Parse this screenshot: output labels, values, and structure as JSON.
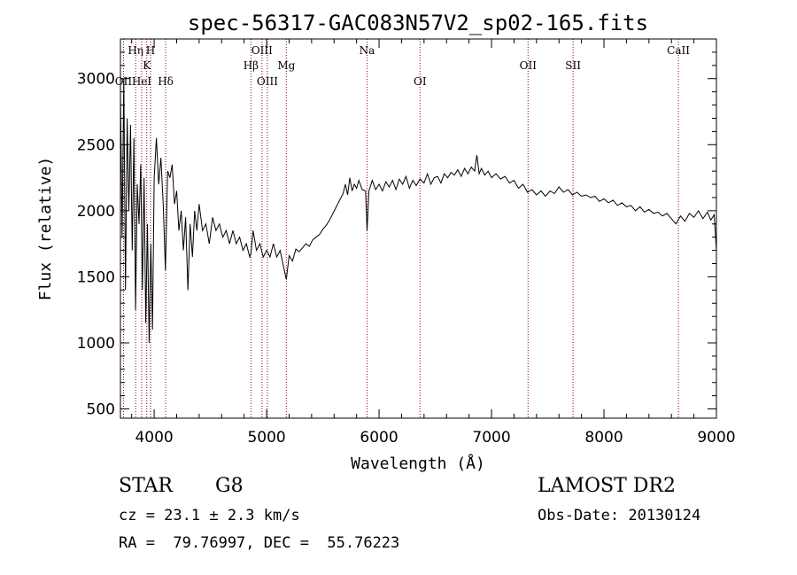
{
  "chart_data": {
    "type": "line",
    "title": "spec-56317-GAC083N57V2_sp02-165.fits",
    "xlabel": "Wavelength (Å)",
    "ylabel": "Flux (relative)",
    "xlim": [
      3700,
      9000
    ],
    "ylim": [
      430,
      3300
    ],
    "xticks": [
      4000,
      5000,
      6000,
      7000,
      8000,
      9000
    ],
    "yticks": [
      500,
      1000,
      1500,
      2000,
      2500,
      3000
    ],
    "line_color": "#000000",
    "marker_color": "#8b0000",
    "lines": [
      {
        "label": "OII",
        "x": 3727,
        "row": 2
      },
      {
        "label": "Hη",
        "x": 3835,
        "row": 0
      },
      {
        "label": "HeI",
        "x": 3889,
        "row": 2
      },
      {
        "label": "K",
        "x": 3934,
        "row": 1
      },
      {
        "label": "H",
        "x": 3968,
        "row": 0
      },
      {
        "label": "Hδ",
        "x": 4102,
        "row": 2
      },
      {
        "label": "Hβ",
        "x": 4861,
        "row": 1
      },
      {
        "label": "OIII",
        "x": 4959,
        "row": 0
      },
      {
        "label": "OIII",
        "x": 5007,
        "row": 2
      },
      {
        "label": "Mg",
        "x": 5175,
        "row": 1
      },
      {
        "label": "Na",
        "x": 5893,
        "row": 0
      },
      {
        "label": "OI",
        "x": 6364,
        "row": 2
      },
      {
        "label": "OII",
        "x": 7325,
        "row": 1
      },
      {
        "label": "SII",
        "x": 7725,
        "row": 1
      },
      {
        "label": "CaII",
        "x": 8662,
        "row": 0
      }
    ],
    "spectrum": [
      [
        3700,
        2900
      ],
      [
        3715,
        1800
      ],
      [
        3730,
        3000
      ],
      [
        3745,
        1400
      ],
      [
        3760,
        2700
      ],
      [
        3775,
        2000
      ],
      [
        3790,
        2650
      ],
      [
        3805,
        1700
      ],
      [
        3820,
        2550
      ],
      [
        3835,
        1250
      ],
      [
        3850,
        2200
      ],
      [
        3865,
        1900
      ],
      [
        3880,
        2350
      ],
      [
        3895,
        1400
      ],
      [
        3910,
        2250
      ],
      [
        3925,
        1150
      ],
      [
        3940,
        1900
      ],
      [
        3955,
        1000
      ],
      [
        3970,
        1750
      ],
      [
        3985,
        1100
      ],
      [
        4000,
        2250
      ],
      [
        4020,
        2550
      ],
      [
        4040,
        2200
      ],
      [
        4060,
        2400
      ],
      [
        4080,
        2050
      ],
      [
        4100,
        1550
      ],
      [
        4120,
        2300
      ],
      [
        4140,
        2250
      ],
      [
        4160,
        2350
      ],
      [
        4180,
        2050
      ],
      [
        4200,
        2150
      ],
      [
        4220,
        1850
      ],
      [
        4240,
        2000
      ],
      [
        4260,
        1700
      ],
      [
        4280,
        1950
      ],
      [
        4300,
        1400
      ],
      [
        4320,
        1900
      ],
      [
        4340,
        1650
      ],
      [
        4360,
        2000
      ],
      [
        4380,
        1850
      ],
      [
        4400,
        2050
      ],
      [
        4430,
        1850
      ],
      [
        4460,
        1900
      ],
      [
        4490,
        1750
      ],
      [
        4520,
        1950
      ],
      [
        4550,
        1850
      ],
      [
        4580,
        1900
      ],
      [
        4610,
        1800
      ],
      [
        4640,
        1850
      ],
      [
        4670,
        1750
      ],
      [
        4700,
        1850
      ],
      [
        4730,
        1750
      ],
      [
        4760,
        1800
      ],
      [
        4790,
        1700
      ],
      [
        4820,
        1750
      ],
      [
        4850,
        1650
      ],
      [
        4861,
        1680
      ],
      [
        4880,
        1850
      ],
      [
        4910,
        1700
      ],
      [
        4940,
        1750
      ],
      [
        4970,
        1650
      ],
      [
        5000,
        1700
      ],
      [
        5030,
        1650
      ],
      [
        5060,
        1750
      ],
      [
        5090,
        1650
      ],
      [
        5120,
        1700
      ],
      [
        5150,
        1580
      ],
      [
        5175,
        1480
      ],
      [
        5200,
        1660
      ],
      [
        5230,
        1620
      ],
      [
        5260,
        1710
      ],
      [
        5290,
        1690
      ],
      [
        5320,
        1720
      ],
      [
        5350,
        1750
      ],
      [
        5380,
        1730
      ],
      [
        5410,
        1780
      ],
      [
        5440,
        1800
      ],
      [
        5470,
        1820
      ],
      [
        5500,
        1860
      ],
      [
        5530,
        1890
      ],
      [
        5560,
        1930
      ],
      [
        5590,
        1980
      ],
      [
        5620,
        2030
      ],
      [
        5650,
        2080
      ],
      [
        5680,
        2130
      ],
      [
        5700,
        2200
      ],
      [
        5720,
        2120
      ],
      [
        5740,
        2250
      ],
      [
        5760,
        2150
      ],
      [
        5780,
        2200
      ],
      [
        5800,
        2170
      ],
      [
        5820,
        2230
      ],
      [
        5850,
        2160
      ],
      [
        5880,
        2150
      ],
      [
        5893,
        1850
      ],
      [
        5910,
        2150
      ],
      [
        5940,
        2230
      ],
      [
        5970,
        2160
      ],
      [
        6000,
        2200
      ],
      [
        6030,
        2150
      ],
      [
        6060,
        2220
      ],
      [
        6090,
        2180
      ],
      [
        6120,
        2230
      ],
      [
        6150,
        2160
      ],
      [
        6180,
        2240
      ],
      [
        6210,
        2200
      ],
      [
        6240,
        2260
      ],
      [
        6270,
        2170
      ],
      [
        6300,
        2230
      ],
      [
        6330,
        2190
      ],
      [
        6364,
        2240
      ],
      [
        6400,
        2210
      ],
      [
        6430,
        2280
      ],
      [
        6460,
        2200
      ],
      [
        6490,
        2250
      ],
      [
        6520,
        2260
      ],
      [
        6550,
        2210
      ],
      [
        6580,
        2280
      ],
      [
        6610,
        2250
      ],
      [
        6640,
        2290
      ],
      [
        6670,
        2270
      ],
      [
        6700,
        2310
      ],
      [
        6730,
        2260
      ],
      [
        6760,
        2320
      ],
      [
        6790,
        2280
      ],
      [
        6820,
        2330
      ],
      [
        6850,
        2300
      ],
      [
        6870,
        2420
      ],
      [
        6890,
        2280
      ],
      [
        6910,
        2320
      ],
      [
        6940,
        2270
      ],
      [
        6970,
        2300
      ],
      [
        7000,
        2250
      ],
      [
        7040,
        2280
      ],
      [
        7080,
        2240
      ],
      [
        7120,
        2260
      ],
      [
        7160,
        2210
      ],
      [
        7200,
        2230
      ],
      [
        7240,
        2170
      ],
      [
        7280,
        2200
      ],
      [
        7320,
        2140
      ],
      [
        7360,
        2160
      ],
      [
        7400,
        2120
      ],
      [
        7440,
        2150
      ],
      [
        7480,
        2110
      ],
      [
        7520,
        2150
      ],
      [
        7560,
        2130
      ],
      [
        7600,
        2180
      ],
      [
        7640,
        2140
      ],
      [
        7680,
        2160
      ],
      [
        7720,
        2120
      ],
      [
        7760,
        2140
      ],
      [
        7800,
        2110
      ],
      [
        7840,
        2120
      ],
      [
        7880,
        2100
      ],
      [
        7920,
        2110
      ],
      [
        7960,
        2070
      ],
      [
        8000,
        2090
      ],
      [
        8040,
        2060
      ],
      [
        8080,
        2080
      ],
      [
        8120,
        2040
      ],
      [
        8160,
        2060
      ],
      [
        8200,
        2030
      ],
      [
        8240,
        2040
      ],
      [
        8280,
        2000
      ],
      [
        8320,
        2030
      ],
      [
        8360,
        1990
      ],
      [
        8400,
        2010
      ],
      [
        8440,
        1980
      ],
      [
        8480,
        1990
      ],
      [
        8520,
        1960
      ],
      [
        8560,
        1980
      ],
      [
        8600,
        1940
      ],
      [
        8640,
        1900
      ],
      [
        8680,
        1960
      ],
      [
        8720,
        1920
      ],
      [
        8760,
        1980
      ],
      [
        8800,
        1950
      ],
      [
        8840,
        2000
      ],
      [
        8880,
        1940
      ],
      [
        8920,
        1990
      ],
      [
        8950,
        1930
      ],
      [
        8980,
        1970
      ],
      [
        9000,
        1700
      ]
    ]
  },
  "info": {
    "class_label": "STAR",
    "subclass_label": "G8",
    "redshift_text": "cz = 23.1 ± 2.3 km/s",
    "coords_text": "RA =  79.76997, DEC =  55.76223",
    "survey_label": "LAMOST DR2",
    "obs_date_text": "Obs-Date: 20130124"
  }
}
